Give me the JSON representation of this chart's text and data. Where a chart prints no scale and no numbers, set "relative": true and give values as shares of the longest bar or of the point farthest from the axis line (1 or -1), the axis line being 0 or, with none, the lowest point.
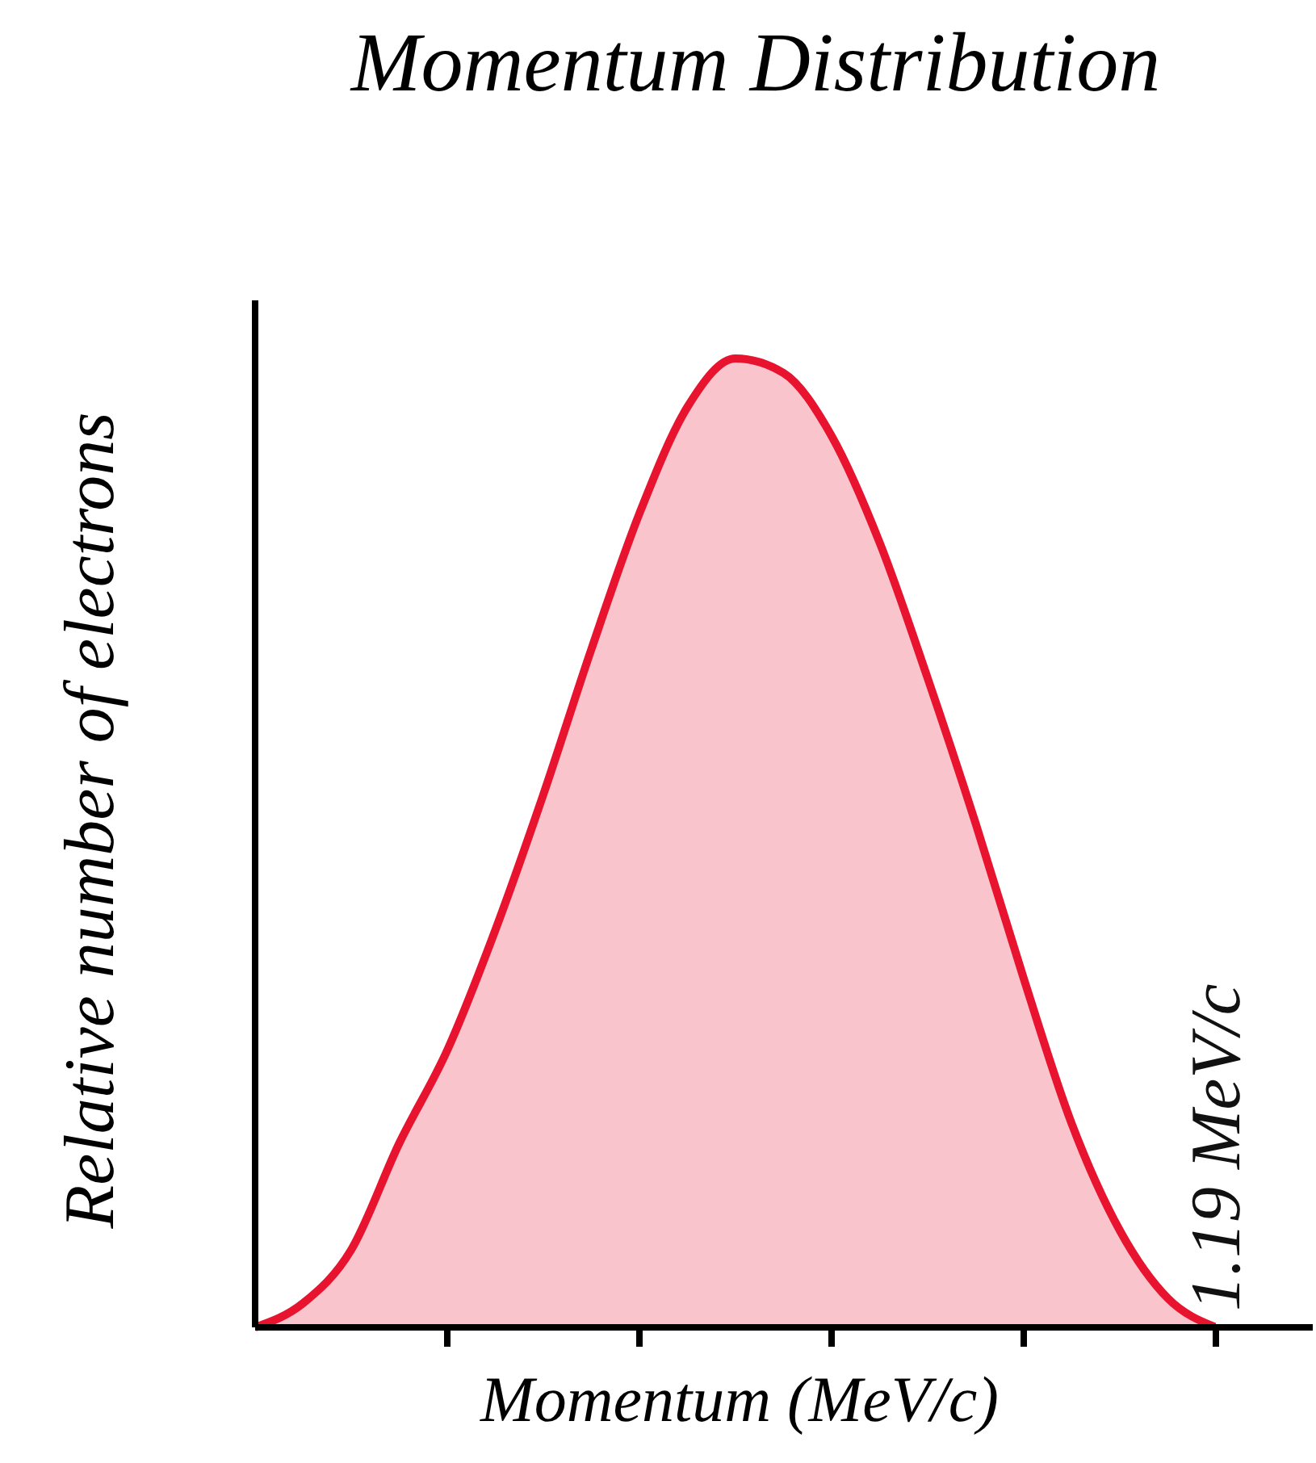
{
  "chart_data": {
    "type": "area",
    "title": "Momentum Distribution",
    "xlabel": "Momentum (MeV/c)",
    "ylabel": "Relative number of electrons",
    "relative": true,
    "categories": [
      null,
      null,
      null,
      null,
      null,
      null,
      null,
      null,
      null,
      null,
      null,
      null,
      null,
      null,
      null,
      null,
      null,
      null,
      null,
      null,
      null
    ],
    "series": [
      {
        "color": "#e8132e",
        "values": [
          0,
          0.025,
          0.08,
          0.19,
          0.286,
          0.41,
          0.55,
          0.7,
          0.84,
          0.95,
          1,
          0.985,
          0.92,
          0.81,
          0.67,
          0.52,
          0.36,
          0.21,
          0.1,
          0.03,
          0
        ]
      }
    ],
    "annotations": [
      "1.19 MeV/c"
    ],
    "grid": false,
    "legend": false,
    "marker": "none",
    "line_style": "solid"
  }
}
